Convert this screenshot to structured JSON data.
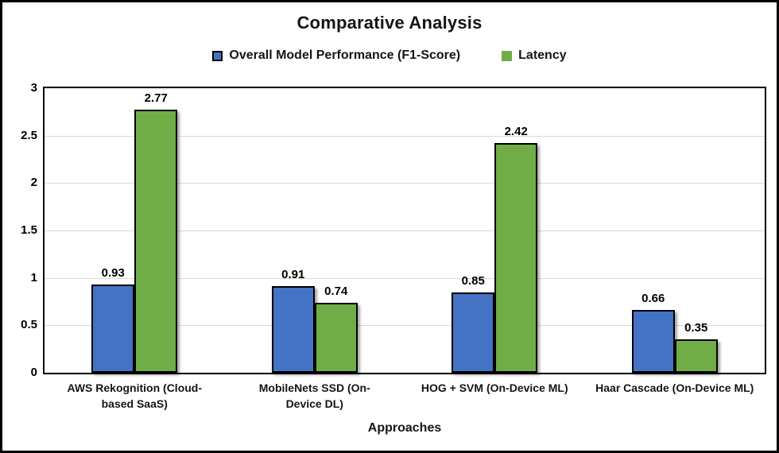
{
  "chart_data": {
    "type": "bar",
    "title": "Comparative Analysis",
    "xlabel": "Approaches",
    "ylabel": "",
    "categories": [
      "AWS Rekognition (Cloud-based SaaS)",
      "MobileNets SSD (On-Device DL)",
      "HOG + SVM (On-Device ML)",
      "Haar Cascade (On-Device ML)"
    ],
    "series": [
      {
        "name": "Overall Model Performance (F1-Score)",
        "color": "#4472C4",
        "values": [
          0.93,
          0.91,
          0.85,
          0.66
        ]
      },
      {
        "name": "Latency",
        "color": "#70AD47",
        "values": [
          2.77,
          0.74,
          2.42,
          0.35
        ]
      }
    ],
    "ylim": [
      0,
      3
    ],
    "ytick_step": 0.5,
    "yticks": [
      "3",
      "2.5",
      "2",
      "1.5",
      "1",
      "0.5",
      "0"
    ],
    "grid": true,
    "legend_position": "top",
    "value_labels": true
  },
  "colors": {
    "series_blue": "#4472C4",
    "series_green": "#70AD47",
    "gridline": "#D9D9D9",
    "axis_border": "#000000",
    "text": "#111111"
  }
}
